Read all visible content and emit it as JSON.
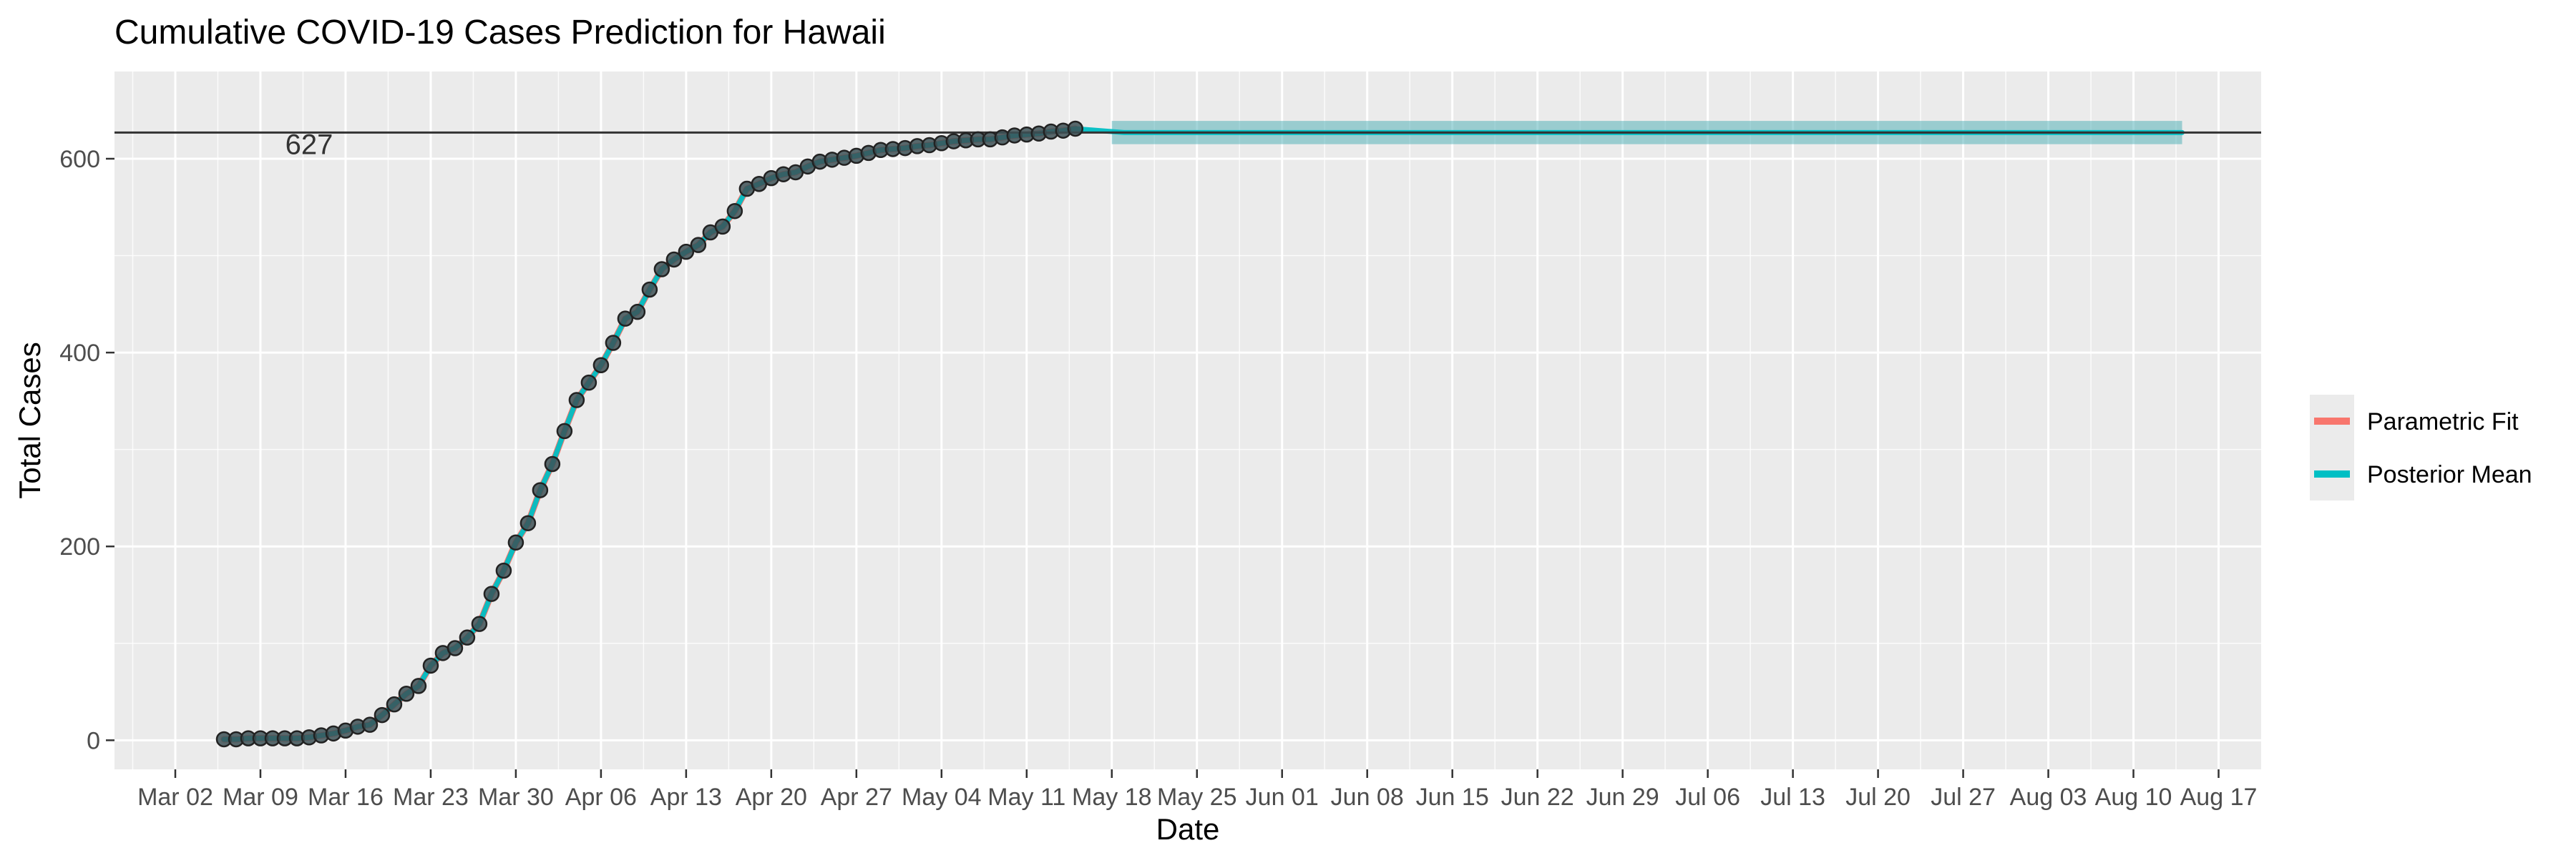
{
  "chart_data": {
    "type": "line",
    "title": "Cumulative COVID-19 Cases Prediction for Hawaii",
    "xlabel": "Date",
    "ylabel": "Total Cases",
    "x_axis": {
      "scale": "date",
      "tick_labels": [
        "Mar 02",
        "Mar 09",
        "Mar 16",
        "Mar 23",
        "Mar 30",
        "Apr 06",
        "Apr 13",
        "Apr 20",
        "Apr 27",
        "May 04",
        "May 11",
        "May 18",
        "May 25",
        "Jun 01",
        "Jun 08",
        "Jun 15",
        "Jun 22",
        "Jun 29",
        "Jul 06",
        "Jul 13",
        "Jul 20",
        "Jul 27",
        "Aug 03",
        "Aug 10",
        "Aug 17"
      ]
    },
    "y_axis": {
      "range": [
        -30,
        690
      ],
      "ticks": [
        0,
        200,
        400,
        600
      ],
      "tick_labels": [
        "0",
        "200",
        "400",
        "600"
      ]
    },
    "grid": true,
    "legend": {
      "position": "right",
      "entries": [
        {
          "label": "Parametric Fit",
          "color": "#F8766D"
        },
        {
          "label": "Posterior Mean",
          "color": "#00BFC4"
        }
      ]
    },
    "reference_line": {
      "y": 627,
      "label": "627",
      "color": "#333333"
    },
    "observed_points": {
      "start_date": "Mar 06",
      "values": [
        1,
        1,
        2,
        2,
        2,
        2,
        2,
        3,
        5,
        7,
        10,
        14,
        16,
        26,
        37,
        48,
        56,
        77,
        90,
        95,
        106,
        120,
        151,
        175,
        204,
        224,
        258,
        285,
        319,
        351,
        369,
        387,
        410,
        435,
        442,
        465,
        486,
        496,
        504,
        511,
        524,
        530,
        546,
        569,
        574,
        580,
        584,
        586,
        592,
        597,
        599,
        601,
        603,
        606,
        609,
        610,
        611,
        613,
        614,
        616,
        618,
        619,
        620,
        620,
        622,
        624,
        625,
        626,
        628,
        629,
        631
      ]
    },
    "series": [
      {
        "name": "Parametric Fit",
        "color": "#F8766D",
        "start_date": "Mar 06",
        "end_date": "May 18"
      },
      {
        "name": "Posterior Mean",
        "color": "#00BFC4",
        "start_date": "Mar 06",
        "end_date": "Aug 14",
        "plateau": 627,
        "band_halfwidth_after_May_18": 12
      }
    ]
  }
}
